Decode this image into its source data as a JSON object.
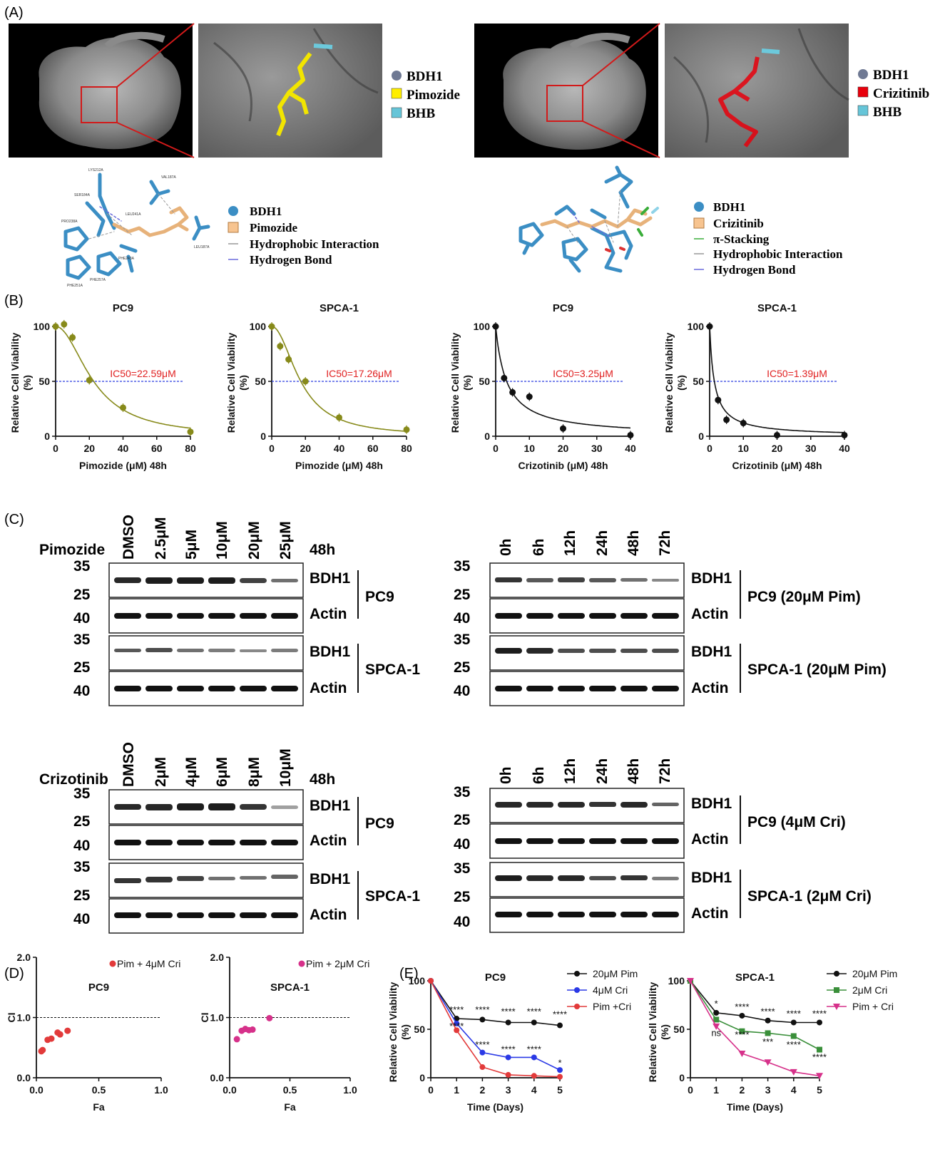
{
  "panels": {
    "A": "(A)",
    "B": "(B)",
    "C": "(C)",
    "D": "(D)",
    "E": "(E)"
  },
  "panel_a": {
    "legend_left": [
      "BDH1",
      "Pimozide",
      "BHB"
    ],
    "legend_right": [
      "BDH1",
      "Crizitinib",
      "BHB"
    ],
    "legend_left_colors": [
      "#6f7993",
      "#ffee00",
      "#66c5d8"
    ],
    "legend_right_colors": [
      "#6f7993",
      "#e8000c",
      "#66c5d8"
    ],
    "interaction_left": [
      "BDH1",
      "Pimozide",
      "Hydrophobic Interaction",
      "Hydrogen Bond"
    ],
    "interaction_right": [
      "BDH1",
      "Crizitinib",
      "π-Stacking",
      "Hydrophobic Interaction",
      "Hydrogen Bond"
    ],
    "residues_left": [
      "LYS212A",
      "SER184A",
      "PRO238A",
      "VAL187A",
      "LEU241A",
      "LEU187A",
      "PHE243A",
      "PHE251A",
      "PHE257A"
    ]
  },
  "western": {
    "pim_dose": {
      "drug_label": "Pimozide",
      "time_label": "48h",
      "lanes": [
        "DMSO",
        "2.5μM",
        "5μM",
        "10μM",
        "20μM",
        "25μM"
      ],
      "markers": [
        "35",
        "25",
        "40",
        "35",
        "25",
        "40"
      ],
      "bands": [
        "BDH1",
        "Actin",
        "BDH1",
        "Actin"
      ],
      "cells": [
        "PC9",
        "SPCA-1"
      ]
    },
    "pim_time": {
      "lanes": [
        "0h",
        "6h",
        "12h",
        "24h",
        "48h",
        "72h"
      ],
      "markers": [
        "35",
        "25",
        "40",
        "35",
        "25",
        "40"
      ],
      "bands": [
        "BDH1",
        "Actin",
        "BDH1",
        "Actin"
      ],
      "cells": [
        "PC9 (20μM Pim)",
        "SPCA-1 (20μM Pim)"
      ]
    },
    "cri_dose": {
      "drug_label": "Crizotinib",
      "time_label": "48h",
      "lanes": [
        "DMSO",
        "2μM",
        "4μM",
        "6μM",
        "8μM",
        "10μM"
      ],
      "markers": [
        "35",
        "25",
        "40",
        "35",
        "25",
        "40"
      ],
      "bands": [
        "BDH1",
        "Actin",
        "BDH1",
        "Actin"
      ],
      "cells": [
        "PC9",
        "SPCA-1"
      ]
    },
    "cri_time": {
      "lanes": [
        "0h",
        "6h",
        "12h",
        "24h",
        "48h",
        "72h"
      ],
      "markers": [
        "35",
        "25",
        "40",
        "35",
        "25",
        "40"
      ],
      "bands": [
        "BDH1",
        "Actin",
        "BDH1",
        "Actin"
      ],
      "cells": [
        "PC9 (4μM Cri)",
        "SPCA-1 (2μM Cri)"
      ]
    }
  },
  "chart_data": [
    {
      "id": "B1",
      "type": "scatter",
      "title": "PC9",
      "xlabel": "Pimozide (μM) 48h",
      "ylabel": "Relative Cell Viability (%)",
      "xlim": [
        0,
        80
      ],
      "ylim": [
        0,
        100
      ],
      "xticks": [
        0,
        20,
        40,
        60,
        80
      ],
      "yticks": [
        0,
        50,
        100
      ],
      "points": [
        [
          0,
          100
        ],
        [
          5,
          102
        ],
        [
          10,
          90
        ],
        [
          20,
          51
        ],
        [
          40,
          26
        ],
        [
          80,
          4
        ]
      ],
      "color": "#878a1a",
      "fit_color": "#878a1a",
      "ic50": 22.59,
      "ic50_label": "IC50=22.59μM",
      "ref_line": 50
    },
    {
      "id": "B2",
      "type": "scatter",
      "title": "SPCA-1",
      "xlabel": "Pimozide (μM) 48h",
      "ylabel": "Relative Cell Viability (%)",
      "xlim": [
        0,
        80
      ],
      "ylim": [
        0,
        100
      ],
      "xticks": [
        0,
        20,
        40,
        60,
        80
      ],
      "yticks": [
        0,
        50,
        100
      ],
      "points": [
        [
          0,
          100
        ],
        [
          5,
          82
        ],
        [
          10,
          70
        ],
        [
          20,
          50
        ],
        [
          40,
          17
        ],
        [
          80,
          6
        ]
      ],
      "color": "#878a1a",
      "fit_color": "#878a1a",
      "ic50": 17.26,
      "ic50_label": "IC50=17.26μM",
      "ref_line": 50
    },
    {
      "id": "B3",
      "type": "scatter",
      "title": "PC9",
      "xlabel": "Crizotinib (μM) 48h",
      "ylabel": "Relative Cell Viability (%)",
      "xlim": [
        0,
        40
      ],
      "ylim": [
        0,
        100
      ],
      "xticks": [
        0,
        10,
        20,
        30,
        40
      ],
      "yticks": [
        0,
        50,
        100
      ],
      "points": [
        [
          0,
          100
        ],
        [
          2.5,
          53
        ],
        [
          5,
          40
        ],
        [
          10,
          36
        ],
        [
          20,
          7
        ],
        [
          40,
          1
        ]
      ],
      "color": "#111111",
      "fit_color": "#111111",
      "ic50": 3.25,
      "ic50_label": "IC50=3.25μM",
      "ref_line": 50
    },
    {
      "id": "B4",
      "type": "scatter",
      "title": "SPCA-1",
      "xlabel": "Crizotinib (μM) 48h",
      "ylabel": "Relative Cell Viability (%)",
      "xlim": [
        0,
        40
      ],
      "ylim": [
        0,
        100
      ],
      "xticks": [
        0,
        10,
        20,
        30,
        40
      ],
      "yticks": [
        0,
        50,
        100
      ],
      "points": [
        [
          0,
          100
        ],
        [
          2.5,
          33
        ],
        [
          5,
          15
        ],
        [
          10,
          12
        ],
        [
          20,
          1
        ],
        [
          40,
          1
        ]
      ],
      "color": "#111111",
      "fit_color": "#111111",
      "ic50": 1.39,
      "ic50_label": "IC50=1.39μM",
      "ref_line": 50
    },
    {
      "id": "D1",
      "type": "scatter",
      "title": "PC9",
      "xlabel": "Fa",
      "ylabel": "CI",
      "xlim": [
        0,
        1
      ],
      "ylim": [
        0,
        2
      ],
      "xticks": [
        0.0,
        0.5,
        1.0
      ],
      "yticks": [
        0.0,
        1.0,
        2.0
      ],
      "ref_line": 1.0,
      "series": [
        {
          "name": "Pim + 4μM Cri",
          "color": "#e23a3a",
          "points": [
            [
              0.04,
              0.44
            ],
            [
              0.05,
              0.46
            ],
            [
              0.09,
              0.63
            ],
            [
              0.12,
              0.65
            ],
            [
              0.17,
              0.75
            ],
            [
              0.19,
              0.72
            ],
            [
              0.25,
              0.78
            ]
          ]
        }
      ]
    },
    {
      "id": "D2",
      "type": "scatter",
      "title": "SPCA-1",
      "xlabel": "Fa",
      "ylabel": "CI",
      "xlim": [
        0,
        1
      ],
      "ylim": [
        0,
        2
      ],
      "xticks": [
        0.0,
        0.5,
        1.0
      ],
      "yticks": [
        0.0,
        1.0,
        2.0
      ],
      "ref_line": 1.0,
      "series": [
        {
          "name": "Pim + 2μM Cri",
          "color": "#d6318a",
          "points": [
            [
              0.06,
              0.64
            ],
            [
              0.1,
              0.78
            ],
            [
              0.13,
              0.81
            ],
            [
              0.16,
              0.79
            ],
            [
              0.19,
              0.8
            ],
            [
              0.33,
              0.99
            ]
          ]
        }
      ]
    },
    {
      "id": "E1",
      "type": "line",
      "title": "PC9",
      "xlabel": "Time (Days)",
      "ylabel": "Relative Cell Viability (%)",
      "xlim": [
        0,
        5
      ],
      "ylim": [
        0,
        100
      ],
      "xticks": [
        0,
        1,
        2,
        3,
        4,
        5
      ],
      "yticks": [
        0,
        50,
        100
      ],
      "x": [
        0,
        1,
        2,
        3,
        4,
        5
      ],
      "series": [
        {
          "name": "20μM Pim",
          "color": "#111111",
          "marker": "circle",
          "values": [
            100,
            61,
            60,
            57,
            57,
            54
          ]
        },
        {
          "name": "4μM Cri",
          "color": "#2a39e6",
          "marker": "circle",
          "values": [
            100,
            56,
            26,
            21,
            21,
            8
          ]
        },
        {
          "name": "Pim +Cri",
          "color": "#e23a3a",
          "marker": "circle",
          "values": [
            100,
            49,
            11,
            3,
            2,
            1
          ]
        }
      ],
      "annotations": [
        {
          "x": 1,
          "y": 67,
          "text": "****"
        },
        {
          "x": 2,
          "y": 67,
          "text": "****"
        },
        {
          "x": 3,
          "y": 65,
          "text": "****"
        },
        {
          "x": 4,
          "y": 65,
          "text": "****"
        },
        {
          "x": 5,
          "y": 62,
          "text": "****"
        },
        {
          "x": 1,
          "y": 50,
          "text": "****"
        },
        {
          "x": 2,
          "y": 31,
          "text": "****"
        },
        {
          "x": 3,
          "y": 26,
          "text": "****"
        },
        {
          "x": 4,
          "y": 26,
          "text": "****"
        },
        {
          "x": 5,
          "y": 12,
          "text": "*"
        }
      ]
    },
    {
      "id": "E2",
      "type": "line",
      "title": "SPCA-1",
      "xlabel": "Time (Days)",
      "ylabel": "Relative Cell Viability (%)",
      "xlim": [
        0,
        5
      ],
      "ylim": [
        0,
        100
      ],
      "xticks": [
        0,
        1,
        2,
        3,
        4,
        5
      ],
      "yticks": [
        0,
        50,
        100
      ],
      "x": [
        0,
        1,
        2,
        3,
        4,
        5
      ],
      "series": [
        {
          "name": "20μM Pim",
          "color": "#111111",
          "marker": "circle",
          "values": [
            100,
            67,
            64,
            59,
            57,
            57
          ]
        },
        {
          "name": "2μM Cri",
          "color": "#3a8f3a",
          "marker": "square",
          "values": [
            100,
            60,
            48,
            46,
            43,
            29
          ]
        },
        {
          "name": "Pim + Cri",
          "color": "#d6318a",
          "marker": "triangle",
          "values": [
            100,
            53,
            25,
            16,
            6,
            2
          ]
        }
      ],
      "annotations": [
        {
          "x": 1,
          "y": 73,
          "text": "*"
        },
        {
          "x": 2,
          "y": 70,
          "text": "****"
        },
        {
          "x": 3,
          "y": 65,
          "text": "****"
        },
        {
          "x": 4,
          "y": 63,
          "text": "****"
        },
        {
          "x": 5,
          "y": 63,
          "text": "****"
        },
        {
          "x": 1,
          "y": 43,
          "text": "ns"
        },
        {
          "x": 2,
          "y": 41,
          "text": "****"
        },
        {
          "x": 3,
          "y": 34,
          "text": "***"
        },
        {
          "x": 4,
          "y": 31,
          "text": "****"
        },
        {
          "x": 5,
          "y": 18,
          "text": "****"
        }
      ]
    }
  ]
}
